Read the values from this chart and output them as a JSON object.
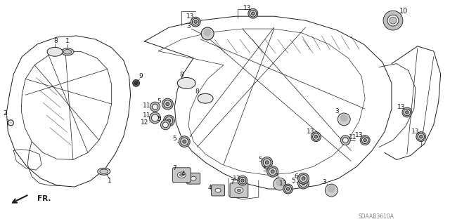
{
  "bg_color": "#ffffff",
  "diagram_color": "#1a1a1a",
  "part_number_text": "SDAAB3610A",
  "fig_width": 6.4,
  "fig_height": 3.19,
  "dpi": 100
}
